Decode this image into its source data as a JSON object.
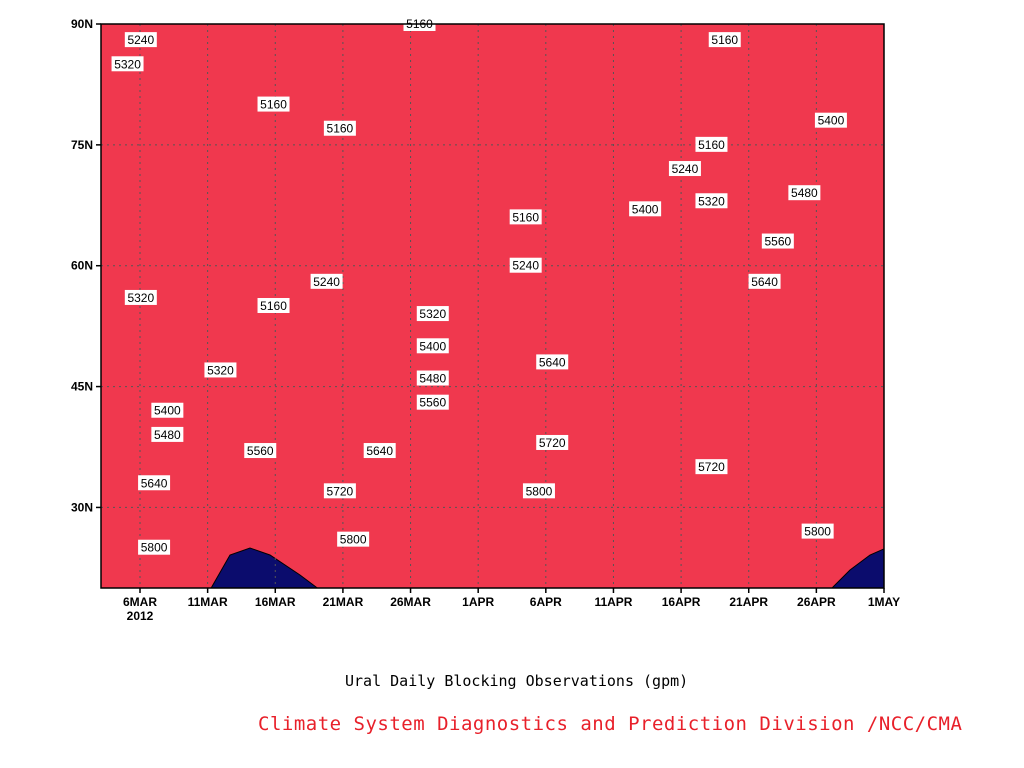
{
  "chart_data": {
    "type": "heatmap",
    "title": "Ural Daily Blocking Observations (gpm)",
    "xlabel": "",
    "ylabel": "",
    "x_ticks": [
      "6MAR",
      "11MAR",
      "16MAR",
      "21MAR",
      "26MAR",
      "1APR",
      "6APR",
      "11APR",
      "16APR",
      "21APR",
      "26APR",
      "1MAY"
    ],
    "x_year_label": "2012",
    "y_ticks": [
      "30N",
      "45N",
      "60N",
      "75N",
      "90N"
    ],
    "xlim": [
      "2012-03-03",
      "2012-05-01"
    ],
    "ylim_deg_north": [
      20,
      90
    ],
    "levels": [
      5160,
      5240,
      5320,
      5400,
      5480,
      5560,
      5640,
      5720,
      5800
    ],
    "colors": [
      "#0b0c6d",
      "#1414e6",
      "#4a54ee",
      "#5a8ee8",
      "#5ec6fa",
      "#fcfc78",
      "#fce0a0",
      "#fca464",
      "#fc7447",
      "#f56d76",
      "#f0384e"
    ],
    "contour_labels": [
      {
        "date": "2012-03-06",
        "lat": 88,
        "value": "5240"
      },
      {
        "date": "2012-03-05",
        "lat": 85,
        "value": "5320"
      },
      {
        "date": "2012-03-16",
        "lat": 80,
        "value": "5160"
      },
      {
        "date": "2012-03-21",
        "lat": 77,
        "value": "5160"
      },
      {
        "date": "2012-03-27",
        "lat": 90,
        "value": "5160"
      },
      {
        "date": "2012-04-04",
        "lat": 66,
        "value": "5160"
      },
      {
        "date": "2012-04-04",
        "lat": 60,
        "value": "5240"
      },
      {
        "date": "2012-04-19",
        "lat": 88,
        "value": "5160"
      },
      {
        "date": "2012-04-18",
        "lat": 75,
        "value": "5160"
      },
      {
        "date": "2012-04-16",
        "lat": 72,
        "value": "5240"
      },
      {
        "date": "2012-04-18",
        "lat": 68,
        "value": "5320"
      },
      {
        "date": "2012-04-13",
        "lat": 67,
        "value": "5400"
      },
      {
        "date": "2012-04-27",
        "lat": 78,
        "value": "5400"
      },
      {
        "date": "2012-04-25",
        "lat": 69,
        "value": "5480"
      },
      {
        "date": "2012-04-23",
        "lat": 63,
        "value": "5560"
      },
      {
        "date": "2012-04-22",
        "lat": 58,
        "value": "5640"
      },
      {
        "date": "2012-03-06",
        "lat": 56,
        "value": "5320"
      },
      {
        "date": "2012-03-16",
        "lat": 55,
        "value": "5160"
      },
      {
        "date": "2012-03-20",
        "lat": 58,
        "value": "5240"
      },
      {
        "date": "2012-03-12",
        "lat": 47,
        "value": "5320"
      },
      {
        "date": "2012-03-28",
        "lat": 54,
        "value": "5320"
      },
      {
        "date": "2012-03-28",
        "lat": 50,
        "value": "5400"
      },
      {
        "date": "2012-03-28",
        "lat": 46,
        "value": "5480"
      },
      {
        "date": "2012-03-28",
        "lat": 43,
        "value": "5560"
      },
      {
        "date": "2012-03-08",
        "lat": 42,
        "value": "5400"
      },
      {
        "date": "2012-03-08",
        "lat": 39,
        "value": "5480"
      },
      {
        "date": "2012-03-15",
        "lat": 37,
        "value": "5560"
      },
      {
        "date": "2012-03-24",
        "lat": 37,
        "value": "5640"
      },
      {
        "date": "2012-03-07",
        "lat": 33,
        "value": "5640"
      },
      {
        "date": "2012-04-06",
        "lat": 48,
        "value": "5640"
      },
      {
        "date": "2012-04-06",
        "lat": 38,
        "value": "5720"
      },
      {
        "date": "2012-03-21",
        "lat": 32,
        "value": "5720"
      },
      {
        "date": "2012-04-18",
        "lat": 35,
        "value": "5720"
      },
      {
        "date": "2012-04-05",
        "lat": 32,
        "value": "5800"
      },
      {
        "date": "2012-03-07",
        "lat": 25,
        "value": "5800"
      },
      {
        "date": "2012-03-22",
        "lat": 26,
        "value": "5800"
      },
      {
        "date": "2012-04-26",
        "lat": 27,
        "value": "5800"
      }
    ]
  },
  "subtitle": "Ural Daily Blocking Observations (gpm)",
  "credit": "Climate System Diagnostics and Prediction Division /NCC/CMA"
}
